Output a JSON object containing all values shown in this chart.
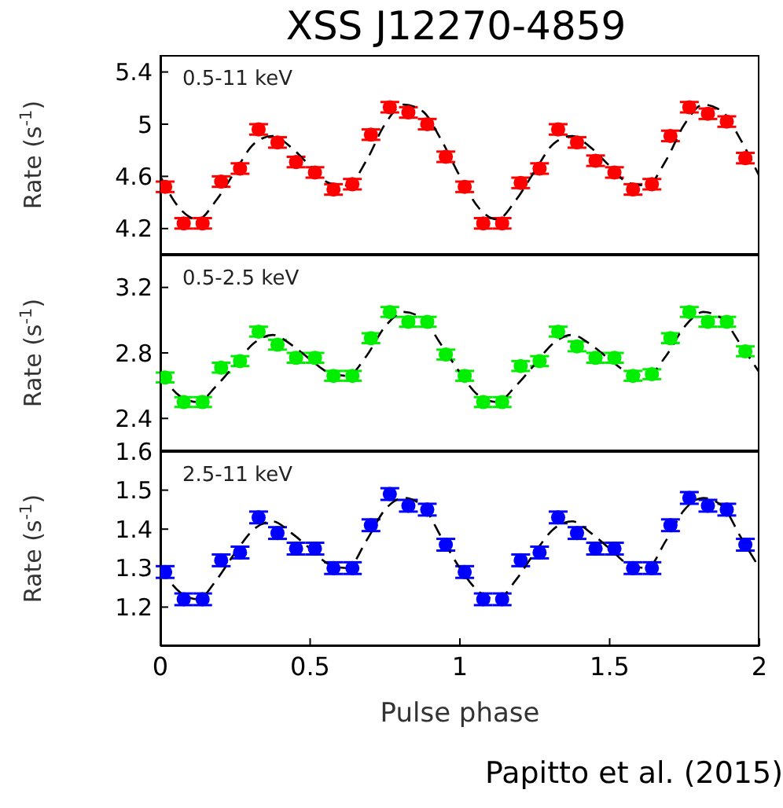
{
  "chart_data": [
    {
      "type": "scatter",
      "title": "XSS J12270-4859",
      "ylabel": "Rate (s$^{-1}$)",
      "annotations": [
        "0.5-11 keV"
      ],
      "xlim": [
        0,
        2
      ],
      "xticks": [
        0,
        0.5,
        1,
        1.5,
        2
      ],
      "ylim": [
        4.0,
        5.53
      ],
      "yticks": [
        4.2,
        4.6,
        5,
        5.4
      ],
      "tick_labels": "y",
      "marker": "circle",
      "x": [
        0.016,
        0.078,
        0.141,
        0.203,
        0.266,
        0.328,
        0.391,
        0.453,
        0.516,
        0.578,
        0.641,
        0.703,
        0.766,
        0.828,
        0.891,
        0.953,
        1.016,
        1.078,
        1.141,
        1.203,
        1.266,
        1.328,
        1.391,
        1.453,
        1.516,
        1.578,
        1.641,
        1.703,
        1.766,
        1.828,
        1.891,
        1.953
      ],
      "series": [
        {
          "color": "#ff0000",
          "values": [
            4.52,
            4.24,
            4.24,
            4.56,
            4.66,
            4.96,
            4.86,
            4.71,
            4.63,
            4.5,
            4.54,
            4.92,
            5.13,
            5.09,
            5.0,
            4.75,
            4.52,
            4.24,
            4.24,
            4.55,
            4.66,
            4.96,
            4.86,
            4.72,
            4.63,
            4.5,
            4.54,
            4.91,
            5.13,
            5.08,
            5.02,
            4.74
          ],
          "errors": [
            0.04,
            0.04,
            0.04,
            0.04,
            0.04,
            0.04,
            0.04,
            0.04,
            0.04,
            0.04,
            0.04,
            0.04,
            0.04,
            0.04,
            0.04,
            0.04,
            0.04,
            0.04,
            0.04,
            0.04,
            0.04,
            0.04,
            0.04,
            0.04,
            0.04,
            0.04,
            0.04,
            0.04,
            0.04,
            0.04,
            0.04,
            0.04
          ]
        },
        {
          "type": "line",
          "color": "#000000",
          "line_style": "dashed",
          "marker": "none",
          "x": [
            0,
            0.0625,
            0.125,
            0.1875,
            0.25,
            0.3125,
            0.375,
            0.4375,
            0.5,
            0.5625,
            0.625,
            0.6875,
            0.75,
            0.8125,
            0.875,
            0.9375,
            1,
            1.0625,
            1.125,
            1.1875,
            1.25,
            1.3125,
            1.375,
            1.4375,
            1.5,
            1.5625,
            1.625,
            1.6875,
            1.75,
            1.8125,
            1.875,
            1.9375,
            2
          ],
          "values": [
            4.6,
            4.36,
            4.27,
            4.42,
            4.64,
            4.85,
            4.91,
            4.82,
            4.68,
            4.55,
            4.53,
            4.72,
            5.0,
            5.15,
            5.1,
            4.88,
            4.6,
            4.36,
            4.27,
            4.42,
            4.64,
            4.85,
            4.91,
            4.82,
            4.68,
            4.55,
            4.53,
            4.72,
            5.0,
            5.15,
            5.1,
            4.88,
            4.6
          ]
        }
      ]
    },
    {
      "type": "scatter",
      "ylabel": "Rate (s$^{-1}$)",
      "annotations": [
        "0.5-2.5 keV"
      ],
      "xlim": [
        0,
        2
      ],
      "xticks": [
        0,
        0.5,
        1,
        1.5,
        2
      ],
      "ylim": [
        2.2,
        3.4
      ],
      "yticks": [
        2.4,
        2.8,
        3.2
      ],
      "tick_labels": "y",
      "marker": "circle",
      "x": [
        0.016,
        0.078,
        0.141,
        0.203,
        0.266,
        0.328,
        0.391,
        0.453,
        0.516,
        0.578,
        0.641,
        0.703,
        0.766,
        0.828,
        0.891,
        0.953,
        1.016,
        1.078,
        1.141,
        1.203,
        1.266,
        1.328,
        1.391,
        1.453,
        1.516,
        1.578,
        1.641,
        1.703,
        1.766,
        1.828,
        1.891,
        1.953
      ],
      "series": [
        {
          "color": "#00ee00",
          "values": [
            2.65,
            2.5,
            2.5,
            2.71,
            2.75,
            2.93,
            2.85,
            2.77,
            2.77,
            2.66,
            2.66,
            2.89,
            3.05,
            2.99,
            2.99,
            2.79,
            2.66,
            2.5,
            2.5,
            2.72,
            2.75,
            2.93,
            2.84,
            2.77,
            2.77,
            2.66,
            2.67,
            2.89,
            3.05,
            2.99,
            2.99,
            2.81
          ],
          "errors": [
            0.03,
            0.03,
            0.03,
            0.03,
            0.03,
            0.03,
            0.03,
            0.03,
            0.03,
            0.03,
            0.03,
            0.03,
            0.03,
            0.03,
            0.03,
            0.03,
            0.03,
            0.03,
            0.03,
            0.03,
            0.03,
            0.03,
            0.03,
            0.03,
            0.03,
            0.03,
            0.03,
            0.03,
            0.03,
            0.03,
            0.03,
            0.03
          ]
        },
        {
          "type": "line",
          "color": "#000000",
          "line_style": "dashed",
          "marker": "none",
          "x": [
            0,
            0.0625,
            0.125,
            0.1875,
            0.25,
            0.3125,
            0.375,
            0.4375,
            0.5,
            0.5625,
            0.625,
            0.6875,
            0.75,
            0.8125,
            0.875,
            0.9375,
            1,
            1.0625,
            1.125,
            1.1875,
            1.25,
            1.3125,
            1.375,
            1.4375,
            1.5,
            1.5625,
            1.625,
            1.6875,
            1.75,
            1.8125,
            1.875,
            1.9375,
            2
          ],
          "values": [
            2.68,
            2.54,
            2.5,
            2.6,
            2.73,
            2.86,
            2.91,
            2.85,
            2.76,
            2.68,
            2.66,
            2.78,
            2.96,
            3.05,
            3.01,
            2.85,
            2.68,
            2.54,
            2.5,
            2.6,
            2.73,
            2.86,
            2.91,
            2.85,
            2.76,
            2.68,
            2.66,
            2.78,
            2.96,
            3.05,
            3.01,
            2.85,
            2.68
          ]
        }
      ]
    },
    {
      "type": "scatter",
      "ylabel": "Rate (s$^{-1}$)",
      "xlabel": "Pulse phase",
      "annotations": [
        "2.5-11 keV",
        "Papitto et al. (2015)"
      ],
      "xlim": [
        0,
        2
      ],
      "xticks": [
        0,
        0.5,
        1,
        1.5,
        2
      ],
      "ylim": [
        1.1,
        1.6
      ],
      "yticks": [
        1.2,
        1.3,
        1.4,
        1.5,
        1.6
      ],
      "marker": "circle",
      "x": [
        0.016,
        0.078,
        0.141,
        0.203,
        0.266,
        0.328,
        0.391,
        0.453,
        0.516,
        0.578,
        0.641,
        0.703,
        0.766,
        0.828,
        0.891,
        0.953,
        1.016,
        1.078,
        1.141,
        1.203,
        1.266,
        1.328,
        1.391,
        1.453,
        1.516,
        1.578,
        1.641,
        1.703,
        1.766,
        1.828,
        1.891,
        1.953
      ],
      "series": [
        {
          "color": "#0000ff",
          "values": [
            1.29,
            1.22,
            1.22,
            1.32,
            1.34,
            1.43,
            1.39,
            1.35,
            1.35,
            1.3,
            1.3,
            1.41,
            1.49,
            1.46,
            1.45,
            1.36,
            1.29,
            1.22,
            1.22,
            1.32,
            1.34,
            1.43,
            1.39,
            1.35,
            1.35,
            1.3,
            1.3,
            1.41,
            1.48,
            1.46,
            1.45,
            1.36
          ],
          "errors": [
            0.015,
            0.015,
            0.015,
            0.015,
            0.015,
            0.015,
            0.015,
            0.015,
            0.015,
            0.015,
            0.015,
            0.015,
            0.015,
            0.015,
            0.015,
            0.015,
            0.015,
            0.015,
            0.015,
            0.015,
            0.015,
            0.015,
            0.015,
            0.015,
            0.015,
            0.015,
            0.015,
            0.015,
            0.015,
            0.015,
            0.015,
            0.015
          ]
        },
        {
          "type": "line",
          "color": "#000000",
          "line_style": "dashed",
          "marker": "none",
          "x": [
            0,
            0.0625,
            0.125,
            0.1875,
            0.25,
            0.3125,
            0.375,
            0.4375,
            0.5,
            0.5625,
            0.625,
            0.6875,
            0.75,
            0.8125,
            0.875,
            0.9375,
            1,
            1.0625,
            1.125,
            1.1875,
            1.25,
            1.3125,
            1.375,
            1.4375,
            1.5,
            1.5625,
            1.625,
            1.6875,
            1.75,
            1.8125,
            1.875,
            1.9375,
            2
          ],
          "values": [
            1.3,
            1.24,
            1.22,
            1.27,
            1.34,
            1.4,
            1.42,
            1.39,
            1.35,
            1.31,
            1.3,
            1.37,
            1.45,
            1.48,
            1.46,
            1.38,
            1.3,
            1.24,
            1.22,
            1.27,
            1.34,
            1.4,
            1.42,
            1.39,
            1.35,
            1.31,
            1.3,
            1.37,
            1.45,
            1.48,
            1.46,
            1.38,
            1.3
          ]
        }
      ]
    }
  ]
}
